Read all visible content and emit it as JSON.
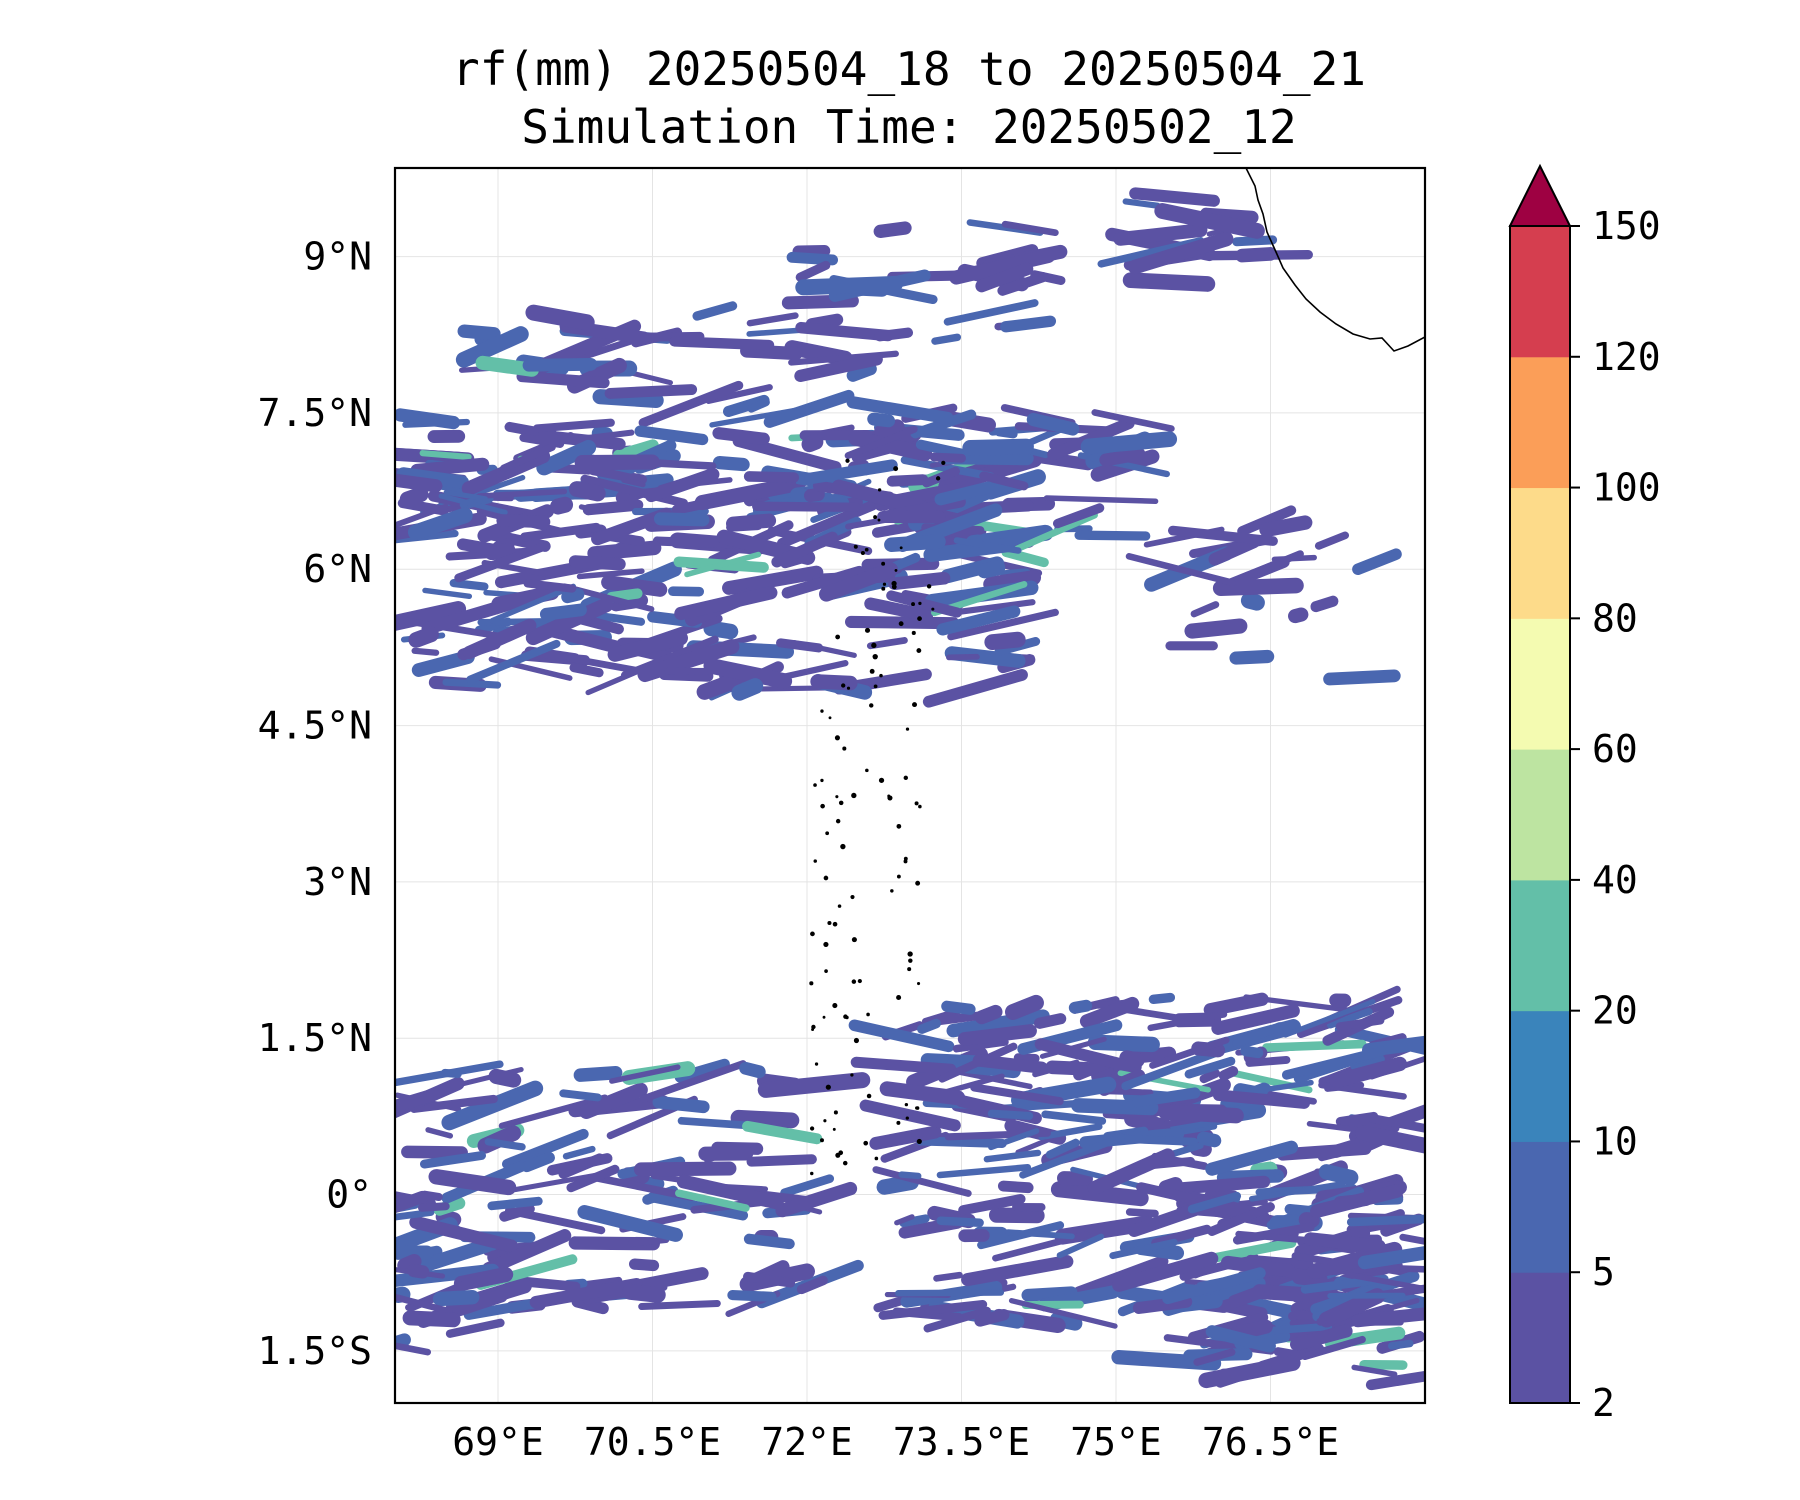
{
  "title": {
    "line1": "rf(mm) 20250504_18 to 20250504_21",
    "line2": "Simulation Time: 20250502_12"
  },
  "map": {
    "lon_range": [
      68,
      78
    ],
    "lat_range": [
      -2,
      9.85
    ],
    "lat_ticks": [
      {
        "value": 9,
        "label": "9°N"
      },
      {
        "value": 7.5,
        "label": "7.5°N"
      },
      {
        "value": 6,
        "label": "6°N"
      },
      {
        "value": 4.5,
        "label": "4.5°N"
      },
      {
        "value": 3,
        "label": "3°N"
      },
      {
        "value": 1.5,
        "label": "1.5°N"
      },
      {
        "value": 0,
        "label": "0°"
      },
      {
        "value": -1.5,
        "label": "1.5°S"
      }
    ],
    "lon_ticks": [
      {
        "value": 69,
        "label": "69°E"
      },
      {
        "value": 70.5,
        "label": "70.5°E"
      },
      {
        "value": 72,
        "label": "72°E"
      },
      {
        "value": 73.5,
        "label": "73.5°E"
      },
      {
        "value": 75,
        "label": "75°E"
      },
      {
        "value": 76.5,
        "label": "76.5°E"
      }
    ],
    "gridlines": true
  },
  "colorbar": {
    "levels": [
      "2",
      "5",
      "10",
      "20",
      "40",
      "60",
      "80",
      "100",
      "120",
      "150"
    ],
    "colors": [
      "#5b52a3",
      "#4a67b0",
      "#3a84bb",
      "#63bfa8",
      "#bde4a1",
      "#f4fbb1",
      "#fddb8a",
      "#fb9e58",
      "#d53e4f"
    ],
    "extend_color": "#9e0142"
  },
  "rain_palette": {
    "low": "#5b52a3",
    "medium": "#4a67b0",
    "high": "#63bfa8"
  },
  "coast_color": "#000000"
}
